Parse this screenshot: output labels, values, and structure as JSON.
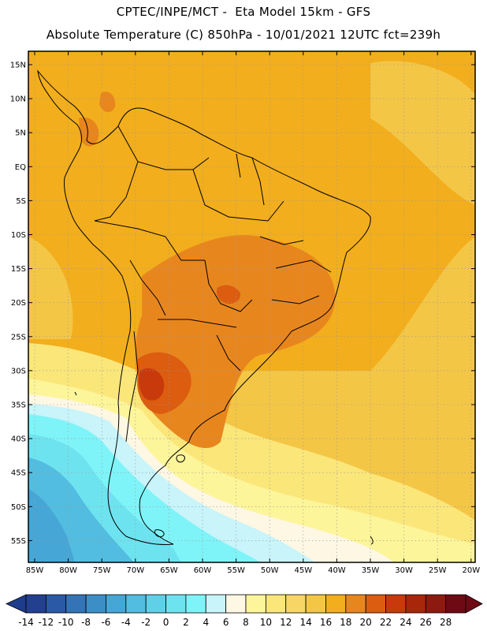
{
  "header": {
    "line1": "CPTEC/INPE/MCT -  Eta Model 15km - GFS",
    "line2": "Absolute Temperature (C) 850hPa - 10/01/2021 12UTC fct=239h"
  },
  "map": {
    "lat_labels": [
      "15N",
      "10N",
      "5N",
      "EQ",
      "5S",
      "10S",
      "15S",
      "20S",
      "25S",
      "30S",
      "35S",
      "40S",
      "45S",
      "50S",
      "55S"
    ],
    "lon_labels": [
      "85W",
      "80W",
      "75W",
      "70W",
      "65W",
      "60W",
      "55W",
      "50W",
      "45W",
      "40W",
      "35W",
      "30W",
      "25W",
      "20W"
    ],
    "grid": "dotted"
  },
  "colorbar": {
    "labels": [
      "-14",
      "-12",
      "-10",
      "-8",
      "-6",
      "-4",
      "-2",
      "0",
      "2",
      "4",
      "6",
      "8",
      "10",
      "12",
      "14",
      "16",
      "18",
      "20",
      "22",
      "24",
      "26",
      "28"
    ],
    "low_color": "#1e3c8c",
    "high_color": "#6e0a14",
    "colors": [
      "#233f8f",
      "#2a5aa6",
      "#3474b6",
      "#3c8ec6",
      "#46a6d6",
      "#52bde0",
      "#5fd0e8",
      "#6ee3f0",
      "#7ff4f8",
      "#c8f4fa",
      "#fdf7e4",
      "#fdf59a",
      "#fbe67a",
      "#f8d666",
      "#f4c646",
      "#f2ae1c",
      "#e8861e",
      "#dc5c10",
      "#c83a0c",
      "#a8260a",
      "#8c1a0e",
      "#6e0a14"
    ]
  }
}
